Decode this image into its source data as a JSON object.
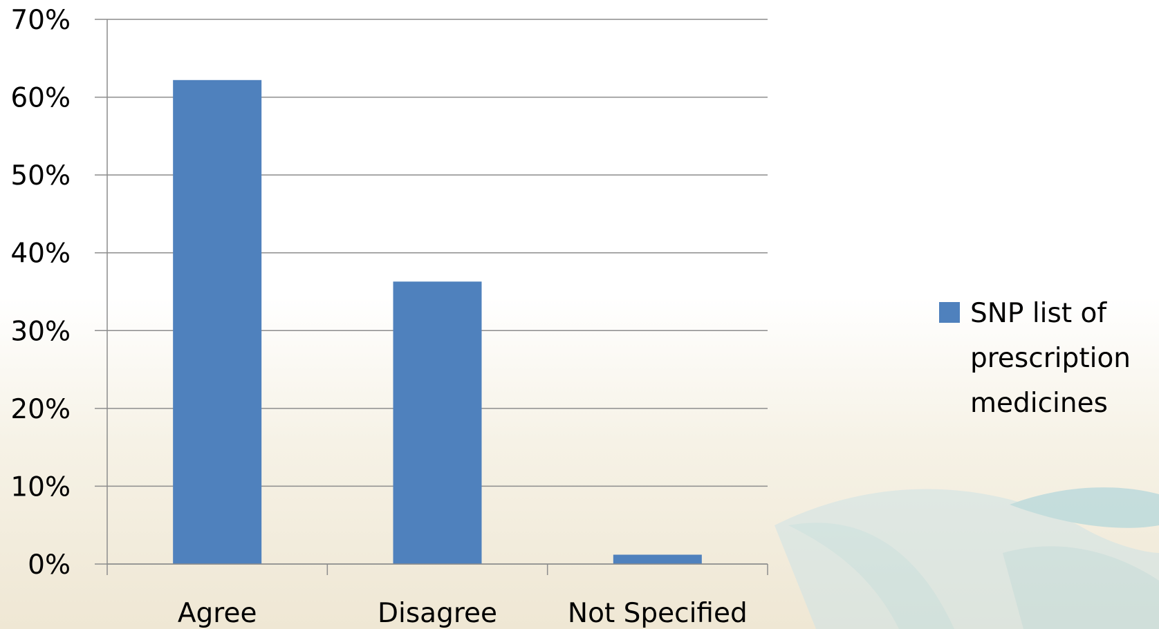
{
  "chart_data": {
    "type": "bar",
    "categories": [
      "Agree",
      "Disagree",
      "Not Specified"
    ],
    "series": [
      {
        "name": "SNP list of prescription medicines",
        "values": [
          62.2,
          36.3,
          1.2
        ]
      }
    ],
    "yticks": [
      "0%",
      "10%",
      "20%",
      "30%",
      "40%",
      "50%",
      "60%",
      "70%"
    ],
    "ylim": [
      0,
      70
    ],
    "grid": true,
    "legend_position": "right",
    "legend_lines": [
      "SNP list of",
      "prescription",
      "medicines"
    ],
    "colors": {
      "bar": "#4f81bd",
      "grid": "#8c8c8c",
      "axis": "#8c8c8c"
    }
  }
}
